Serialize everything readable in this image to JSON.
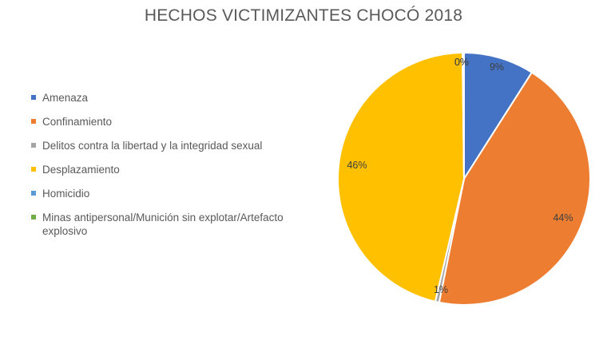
{
  "chart_data": {
    "type": "pie",
    "title": "HECHOS VICTIMIZANTES CHOCÓ 2018",
    "legend_position": "left",
    "slices": [
      {
        "label": "Amenaza",
        "value": 9,
        "display": "9%",
        "color": "#4472C4"
      },
      {
        "label": "Confinamiento",
        "value": 44,
        "display": "44%",
        "color": "#ED7D31"
      },
      {
        "label": "Delitos contra la libertad y la integridad sexual",
        "value": 0.5,
        "display": "1%",
        "color": "#A5A5A5"
      },
      {
        "label": "Desplazamiento",
        "value": 46,
        "display": "46%",
        "color": "#FFC000"
      },
      {
        "label": "Homicidio",
        "value": 0.1,
        "display": "0%",
        "color": "#5B9BD5"
      },
      {
        "label": "Minas antipersonal/Munición sin explotar/Artefacto explosivo",
        "value": 0.1,
        "display": "0%",
        "color": "#70AD47"
      }
    ]
  }
}
